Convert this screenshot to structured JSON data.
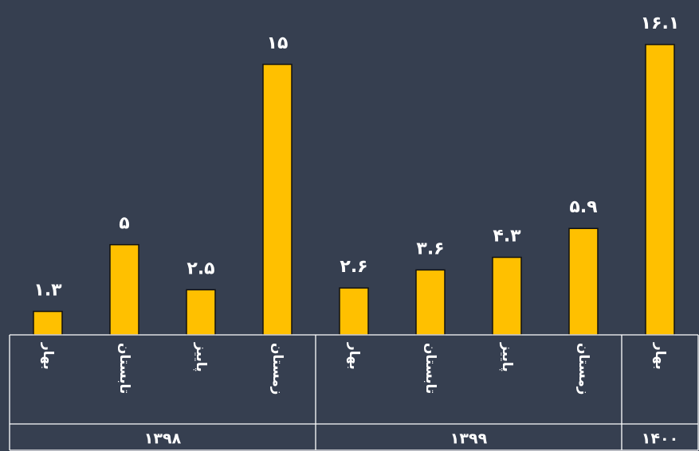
{
  "chart_data": {
    "type": "bar",
    "categories": [
      {
        "label": "بهار",
        "group": "۱۳۹۸"
      },
      {
        "label": "تابستان",
        "group": "۱۳۹۸"
      },
      {
        "label": "پاییز",
        "group": "۱۳۹۸"
      },
      {
        "label": "زمستان",
        "group": "۱۳۹۸"
      },
      {
        "label": "بهار",
        "group": "۱۳۹۹"
      },
      {
        "label": "تابستان",
        "group": "۱۳۹۹"
      },
      {
        "label": "پاییز",
        "group": "۱۳۹۹"
      },
      {
        "label": "زمستان",
        "group": "۱۳۹۹"
      },
      {
        "label": "بهار",
        "group": "۱۴۰۰"
      }
    ],
    "groups": [
      "۱۳۹۸",
      "۱۳۹۹",
      "۱۴۰۰"
    ],
    "values": [
      1.3,
      5,
      2.5,
      15,
      2.6,
      3.6,
      4.3,
      5.9,
      16.1
    ],
    "value_labels": [
      "۱.۳",
      "۵",
      "۲.۵",
      "۱۵",
      "۲.۶",
      "۳.۶",
      "۴.۳",
      "۵.۹",
      "۱۶.۱"
    ],
    "ylim": [
      0,
      16.1
    ],
    "grid": false,
    "legend": "none",
    "bar_color": "#ffc000",
    "background_color": "#363f50",
    "text_color": "#ffffff"
  }
}
